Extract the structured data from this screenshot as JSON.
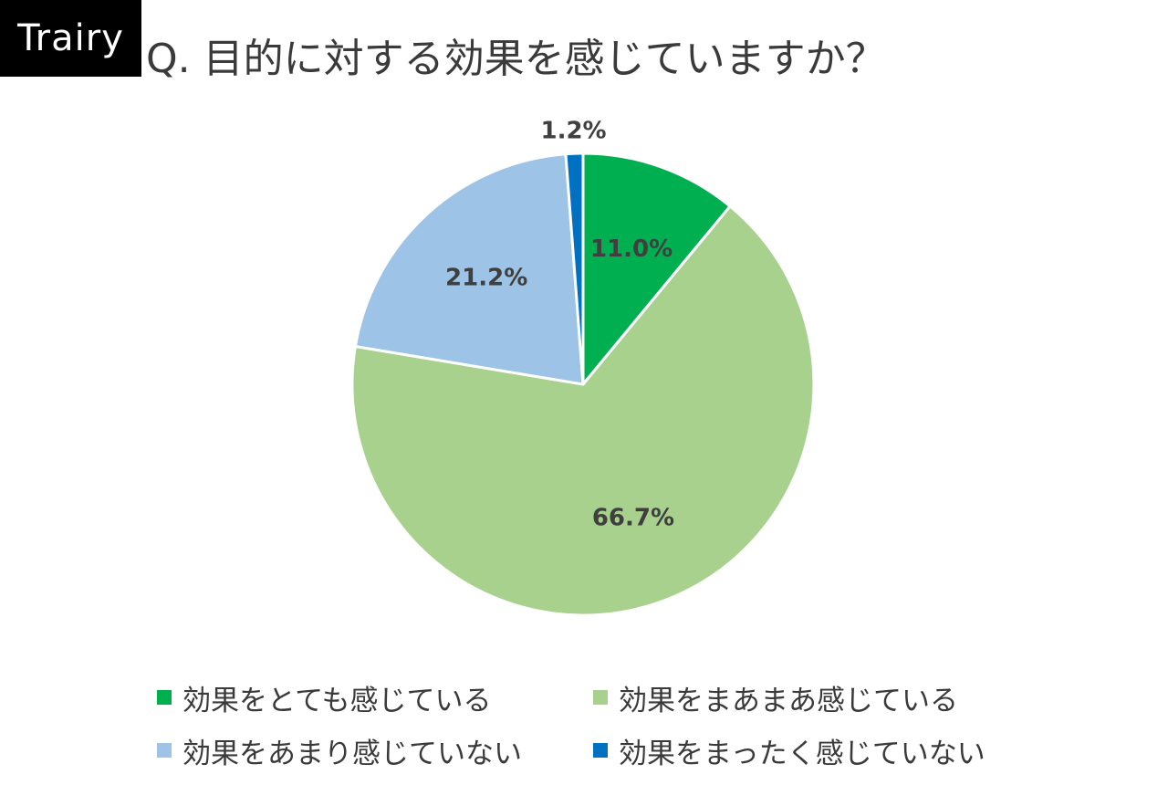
{
  "brand": "Trairy",
  "title": "Q. 目的に対する効果を感じていますか？",
  "chart_data": {
    "type": "pie",
    "title": "Q. 目的に対する効果を感じていますか？",
    "series": [
      {
        "name": "効果をとても感じている",
        "value": 11.0,
        "label": "11.0%",
        "color": "#00b050"
      },
      {
        "name": "効果をまあまあ感じている",
        "value": 66.7,
        "label": "66.7%",
        "color": "#a9d18e"
      },
      {
        "name": "効果をあまり感じていない",
        "value": 21.2,
        "label": "21.2%",
        "color": "#9dc3e6"
      },
      {
        "name": "効果をまったく感じていない",
        "value": 1.2,
        "label": "1.2%",
        "color": "#0070c0"
      }
    ],
    "start": "12 o'clock",
    "direction": "clockwise",
    "legend_position": "bottom"
  }
}
